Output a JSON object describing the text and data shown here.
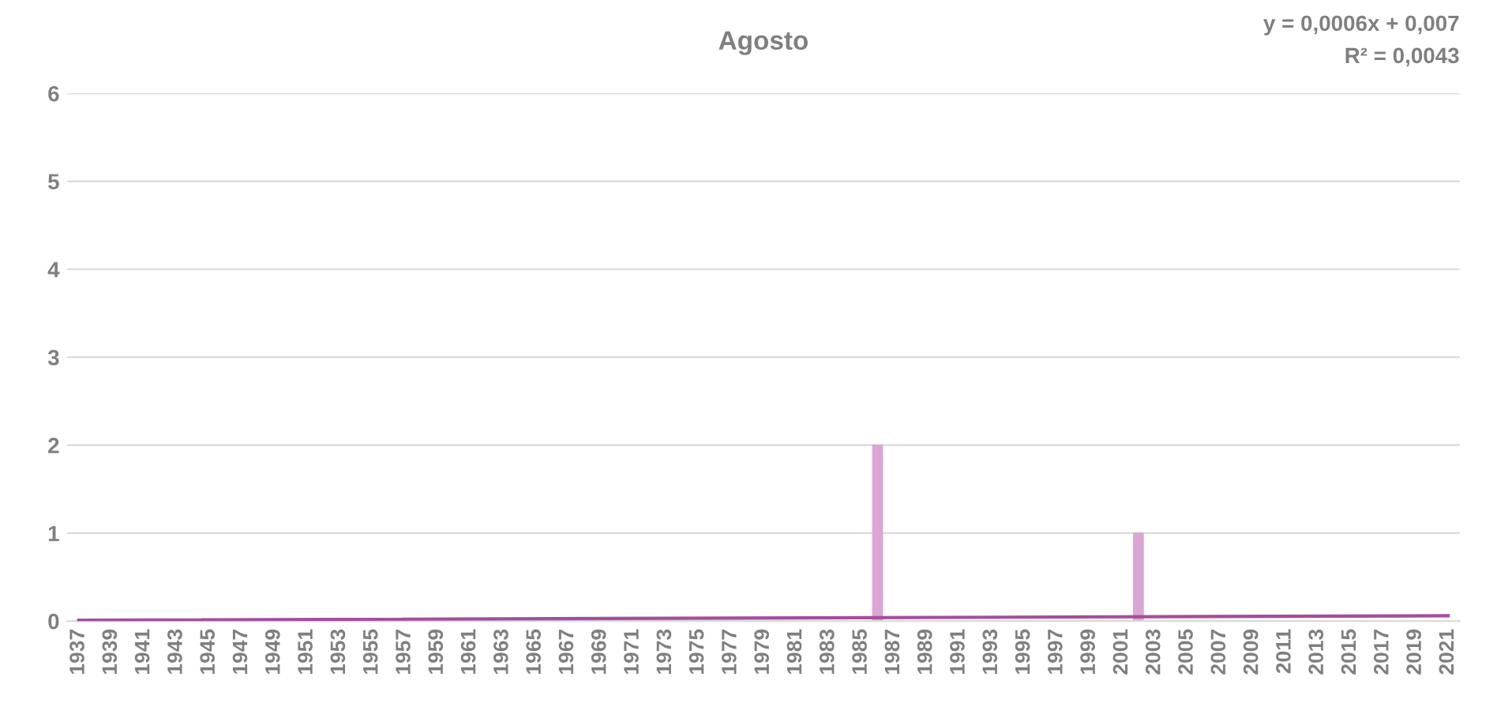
{
  "chart_data": {
    "type": "bar",
    "title": "Agosto",
    "categories": [
      "1937",
      null,
      "1939",
      null,
      "1941",
      null,
      "1943",
      null,
      "1945",
      null,
      "1947",
      null,
      "1949",
      null,
      "1951",
      null,
      "1953",
      null,
      "1955",
      null,
      "1957",
      null,
      "1959",
      null,
      "1961",
      null,
      "1963",
      null,
      "1965",
      null,
      "1967",
      null,
      "1969",
      null,
      "1971",
      null,
      "1973",
      null,
      "1975",
      null,
      "1977",
      null,
      "1979",
      null,
      "1981",
      null,
      "1983",
      null,
      "1985",
      null,
      "1987",
      null,
      "1989",
      null,
      "1991",
      null,
      "1993",
      null,
      "1995",
      null,
      "1997",
      null,
      "1999",
      null,
      "2001",
      null,
      "2003",
      null,
      "2005",
      null,
      "2007",
      null,
      "2009",
      null,
      "2011",
      null,
      "2013",
      null,
      "2015",
      null,
      "2017",
      null,
      "2019",
      null,
      "2021"
    ],
    "series": [
      {
        "color": "#dba6d3",
        "values": [
          0,
          0,
          0,
          0,
          0,
          0,
          0,
          0,
          0,
          0,
          0,
          0,
          0,
          0,
          0,
          0,
          0,
          0,
          0,
          0,
          0,
          0,
          0,
          0,
          0,
          0,
          0,
          0,
          0,
          0,
          0,
          0,
          0,
          0,
          0,
          0,
          0,
          0,
          0,
          0,
          0,
          0,
          0,
          0,
          0,
          0,
          0,
          0,
          0,
          2,
          0,
          0,
          0,
          0,
          0,
          0,
          0,
          0,
          0,
          0,
          0,
          0,
          0,
          0,
          0,
          1,
          0,
          0,
          0,
          0,
          0,
          0,
          0,
          0,
          0,
          0,
          0,
          0,
          0,
          0,
          0,
          0,
          0,
          0,
          0
        ]
      },
      {
        "type": "line",
        "color": "#a64d9c",
        "values": [
          0.01,
          null,
          null,
          null,
          null,
          null,
          null,
          null,
          null,
          null,
          null,
          null,
          null,
          null,
          null,
          null,
          null,
          null,
          null,
          null,
          null,
          null,
          null,
          null,
          null,
          null,
          null,
          null,
          null,
          null,
          null,
          null,
          null,
          null,
          null,
          null,
          null,
          null,
          null,
          null,
          null,
          null,
          null,
          null,
          null,
          null,
          null,
          null,
          null,
          null,
          null,
          null,
          null,
          null,
          null,
          null,
          null,
          null,
          null,
          null,
          null,
          null,
          null,
          null,
          null,
          null,
          null,
          null,
          null,
          null,
          null,
          null,
          null,
          null,
          null,
          null,
          null,
          null,
          null,
          null,
          null,
          null,
          null,
          null,
          0.06
        ]
      }
    ],
    "ylim": [
      0,
      6
    ],
    "yticks": [
      0,
      1,
      2,
      3,
      4,
      5,
      6
    ],
    "grid": "y",
    "annotations": [
      "y = 0,0006x + 0,007",
      "R² = 0,0043"
    ]
  }
}
